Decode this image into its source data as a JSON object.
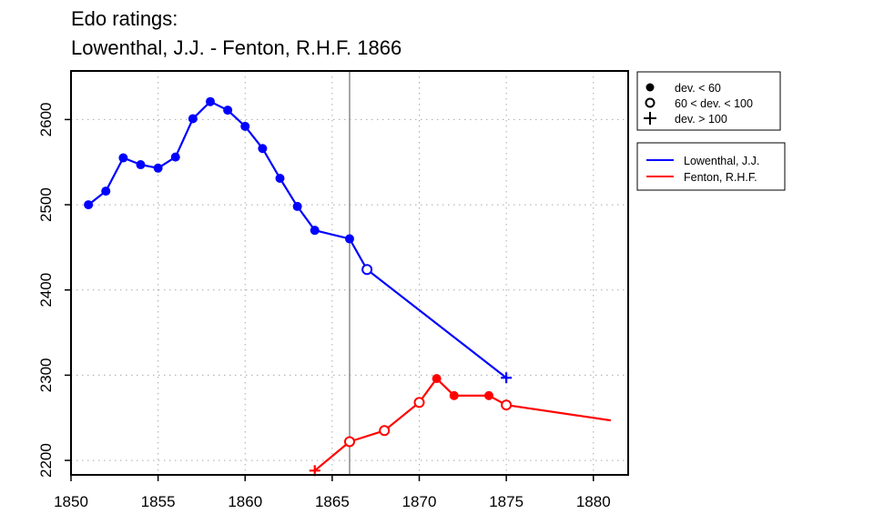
{
  "chart_data": {
    "type": "line",
    "title_lines": [
      "Edo ratings:",
      "Lowenthal, J.J. - Fenton, R.H.F. 1866"
    ],
    "xlabel": "",
    "ylabel": "",
    "xlim": [
      1850,
      1882
    ],
    "ylim": [
      2183,
      2657
    ],
    "x_ticks": [
      1850,
      1855,
      1860,
      1865,
      1870,
      1875,
      1880
    ],
    "y_ticks": [
      2200,
      2300,
      2400,
      2500,
      2600
    ],
    "grid": true,
    "reference_line_x": 1866,
    "marker_legend": [
      {
        "symbol": "filled",
        "label": "dev. < 60"
      },
      {
        "symbol": "open",
        "label": "60 < dev. < 100"
      },
      {
        "symbol": "plus",
        "label": "dev. > 100"
      }
    ],
    "series": [
      {
        "name": "Lowenthal, J.J.",
        "color": "#0000ff",
        "points": [
          {
            "x": 1851,
            "y": 2500,
            "m": "filled"
          },
          {
            "x": 1852,
            "y": 2516,
            "m": "filled"
          },
          {
            "x": 1853,
            "y": 2555,
            "m": "filled"
          },
          {
            "x": 1854,
            "y": 2547,
            "m": "filled"
          },
          {
            "x": 1855,
            "y": 2543,
            "m": "filled"
          },
          {
            "x": 1856,
            "y": 2556,
            "m": "filled"
          },
          {
            "x": 1857,
            "y": 2601,
            "m": "filled"
          },
          {
            "x": 1858,
            "y": 2621,
            "m": "filled"
          },
          {
            "x": 1859,
            "y": 2611,
            "m": "filled"
          },
          {
            "x": 1860,
            "y": 2592,
            "m": "filled"
          },
          {
            "x": 1861,
            "y": 2566,
            "m": "filled"
          },
          {
            "x": 1862,
            "y": 2531,
            "m": "filled"
          },
          {
            "x": 1863,
            "y": 2498,
            "m": "filled"
          },
          {
            "x": 1864,
            "y": 2470,
            "m": "filled"
          },
          {
            "x": 1866,
            "y": 2460,
            "m": "filled"
          },
          {
            "x": 1867,
            "y": 2424,
            "m": "open"
          },
          {
            "x": 1875,
            "y": 2297,
            "m": "plus"
          }
        ]
      },
      {
        "name": "Fenton, R.H.F.",
        "color": "#ff0000",
        "points": [
          {
            "x": 1864,
            "y": 2188,
            "m": "plus"
          },
          {
            "x": 1866,
            "y": 2222,
            "m": "open"
          },
          {
            "x": 1868,
            "y": 2235,
            "m": "open"
          },
          {
            "x": 1870,
            "y": 2268,
            "m": "open"
          },
          {
            "x": 1871,
            "y": 2296,
            "m": "filled"
          },
          {
            "x": 1872,
            "y": 2276,
            "m": "filled"
          },
          {
            "x": 1874,
            "y": 2276,
            "m": "filled"
          },
          {
            "x": 1875,
            "y": 2265,
            "m": "open"
          },
          {
            "x": 1881,
            "y": 2247,
            "m": "none"
          }
        ]
      }
    ]
  }
}
